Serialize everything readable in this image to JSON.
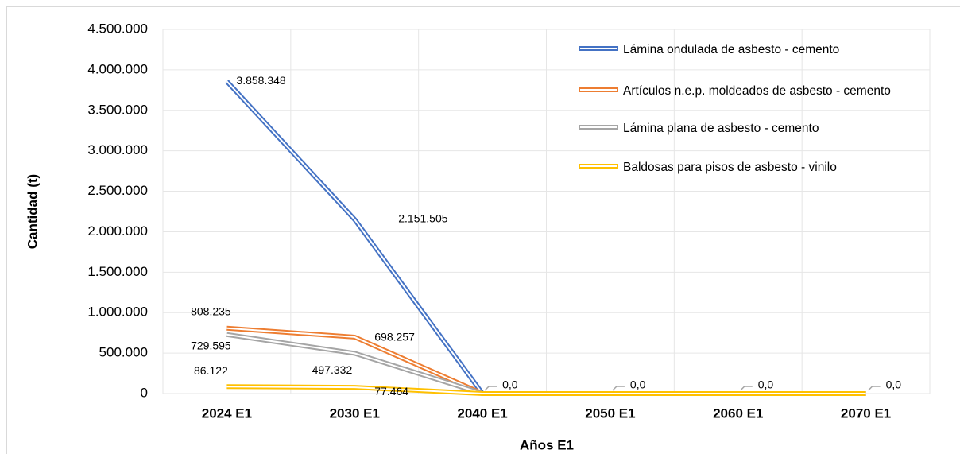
{
  "chart_data": {
    "type": "line",
    "x_label": "Años E1",
    "y_label": "Cantidad (t)",
    "categories": [
      "2024 E1",
      "2030 E1",
      "2040 E1",
      "2050 E1",
      "2060 E1",
      "2070 E1"
    ],
    "series": [
      {
        "name": "Lámina ondulada de asbesto - cemento",
        "color": "#4472c4",
        "values": [
          3858348,
          2151505,
          0,
          0,
          0,
          0
        ],
        "value_labels": [
          "3.858.348",
          "2.151.505",
          null,
          null,
          null,
          null
        ]
      },
      {
        "name": "Artículos n.e.p. moldeados de asbesto - cemento",
        "color": "#ed7d31",
        "values": [
          808235,
          698257,
          0,
          0,
          0,
          0
        ],
        "value_labels": [
          "808.235",
          "698.257",
          null,
          null,
          null,
          null
        ]
      },
      {
        "name": "Lámina plana de asbesto - cemento",
        "color": "#a5a5a5",
        "values": [
          729595,
          497332,
          0,
          0,
          0,
          0
        ],
        "value_labels": [
          "729.595",
          "497.332",
          "0,0",
          "0,0",
          "0,0",
          "0,0"
        ]
      },
      {
        "name": "Baldosas para pisos de asbesto - vinilo",
        "color": "#ffc000",
        "values": [
          86122,
          77464,
          0,
          0,
          0,
          0
        ],
        "value_labels": [
          "86.122",
          "77.464",
          null,
          null,
          null,
          null
        ]
      }
    ],
    "ylim": [
      0,
      4500000
    ],
    "yticks": [
      {
        "value": 0,
        "label": "0"
      },
      {
        "value": 500000,
        "label": "500.000"
      },
      {
        "value": 1000000,
        "label": "1.000.000"
      },
      {
        "value": 1500000,
        "label": "1.500.000"
      },
      {
        "value": 2000000,
        "label": "2.000.000"
      },
      {
        "value": 2500000,
        "label": "2.500.000"
      },
      {
        "value": 3000000,
        "label": "3.000.000"
      },
      {
        "value": 3500000,
        "label": "3.500.000"
      },
      {
        "value": 4000000,
        "label": "4.000.000"
      },
      {
        "value": 4500000,
        "label": "4.500.000"
      }
    ],
    "grid": true,
    "legend": "top-right"
  }
}
